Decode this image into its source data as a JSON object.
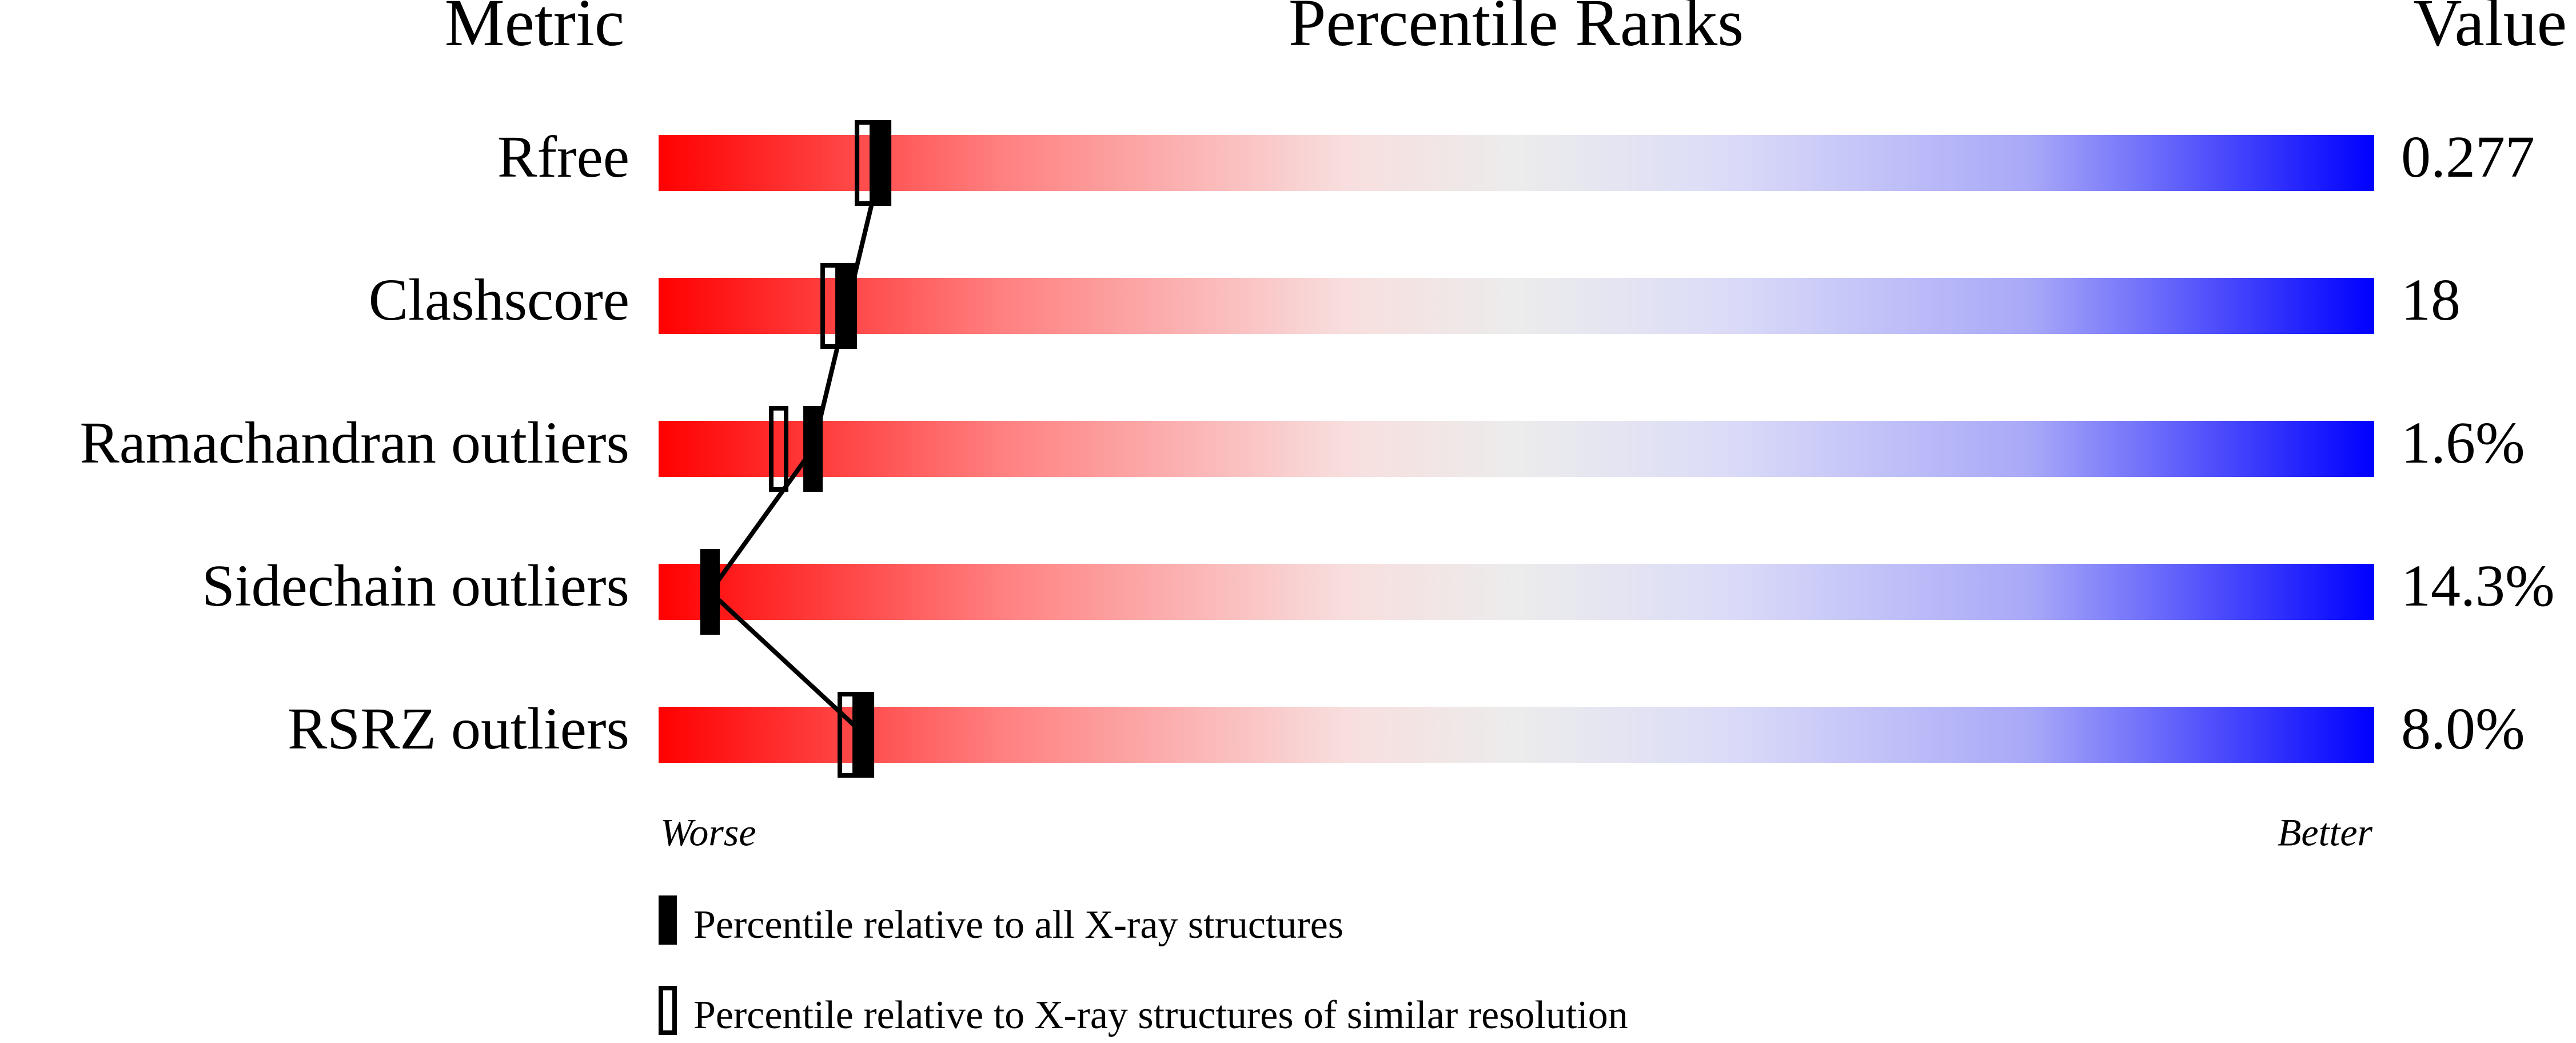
{
  "chart_data": {
    "type": "percentile-slider",
    "title": "Percentile Ranks",
    "metric_header": "Metric",
    "value_header": "Value",
    "categories": [
      "Rfree",
      "Clashscore",
      "Ramachandran outliers",
      "Sidechain outliers",
      "RSRZ outliers"
    ],
    "metric_values": [
      "0.277",
      "18",
      "1.6%",
      "14.3%",
      "8.0%"
    ],
    "xlim": [
      0,
      100
    ],
    "xlabel_left": "Worse",
    "xlabel_right": "Better",
    "series": [
      {
        "name": "Percentile relative to all X-ray structures",
        "color": "#000000",
        "values": [
          13,
          11,
          9,
          3,
          12
        ]
      },
      {
        "name": "Percentile relative to X-ray structures of similar resolution",
        "color": "#000000",
        "values": [
          12,
          10,
          7,
          3,
          11
        ]
      }
    ]
  }
}
